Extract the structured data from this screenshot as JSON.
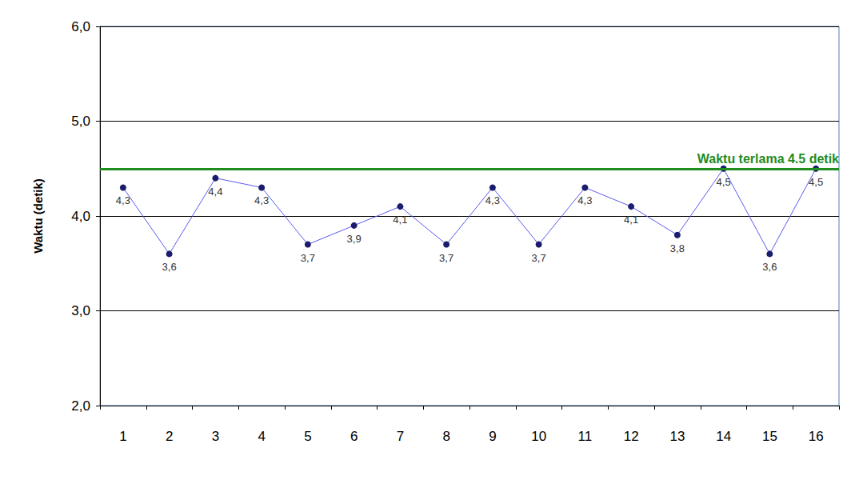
{
  "chart_data": {
    "type": "line",
    "categories": [
      "1",
      "2",
      "3",
      "4",
      "5",
      "6",
      "7",
      "8",
      "9",
      "10",
      "11",
      "12",
      "13",
      "14",
      "15",
      "16"
    ],
    "values": [
      4.3,
      3.6,
      4.4,
      4.3,
      3.7,
      3.9,
      4.1,
      3.7,
      4.3,
      3.7,
      4.3,
      4.1,
      3.8,
      4.5,
      3.6,
      4.5
    ],
    "value_labels": [
      "4,3",
      "3,6",
      "4,4",
      "4,3",
      "3,7",
      "3,9",
      "4,1",
      "3,7",
      "4,3",
      "3,7",
      "4,3",
      "4,1",
      "3,8",
      "4,5",
      "3,6",
      "4,5"
    ],
    "color": "#5a5af0",
    "marker": "circle",
    "ylabel": "Waktu (detik)",
    "ylim": [
      2,
      6
    ],
    "yticks": [
      {
        "value": 2,
        "label": "2,0"
      },
      {
        "value": 3,
        "label": "3,0"
      },
      {
        "value": 4,
        "label": "4,0"
      },
      {
        "value": 5,
        "label": "5,0"
      },
      {
        "value": 6,
        "label": "6,0"
      }
    ],
    "grid": true,
    "data_labels": true,
    "annotations": [
      {
        "text": "Waktu terlama 4.5 detik",
        "y": 4.5,
        "color": "#1e8c1e"
      }
    ]
  }
}
